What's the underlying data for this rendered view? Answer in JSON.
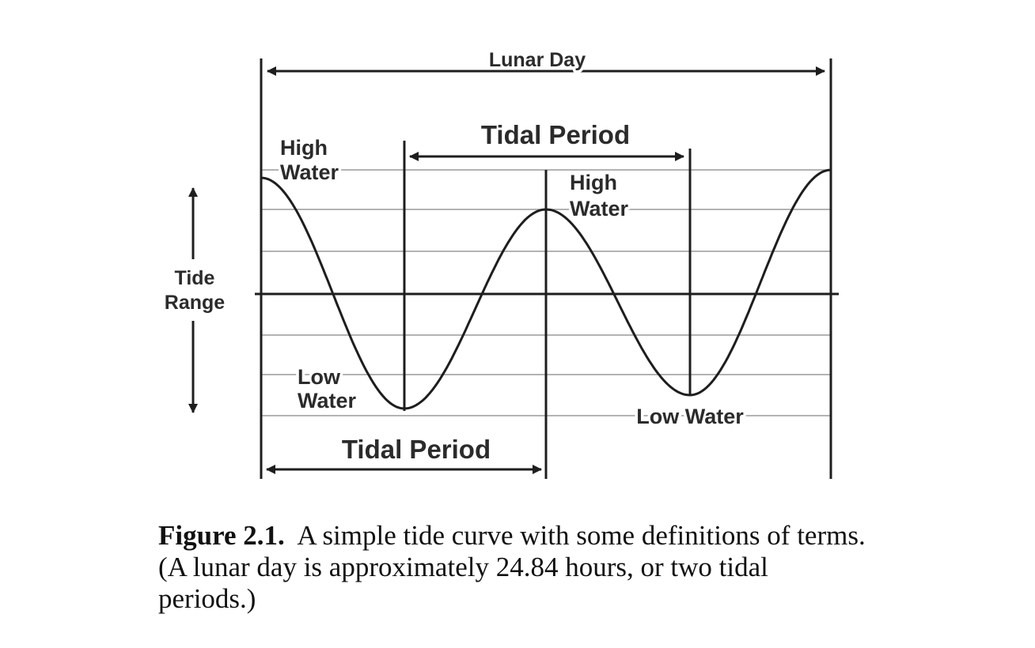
{
  "diagram": {
    "labels": {
      "lunar_day": "Lunar Day",
      "tidal_period_top": "Tidal Period",
      "tidal_period_bottom": "Tidal Period",
      "high_water_left": [
        "High",
        "Water"
      ],
      "high_water_mid": [
        "High",
        "Water"
      ],
      "low_water_left": [
        "Low",
        "Water"
      ],
      "low_water_right": "Low Water",
      "tide_range": [
        "Tide",
        "Range"
      ]
    },
    "colors": {
      "line": "#1e1e1e",
      "grid": "#9a9a9a",
      "curve": "#1e1e1e"
    }
  },
  "caption": {
    "label": "Figure 2.1.",
    "text": "A simple tide curve with some definitions of terms.  (A lunar day is approximately 24.84 hours, or two tidal periods.)"
  }
}
